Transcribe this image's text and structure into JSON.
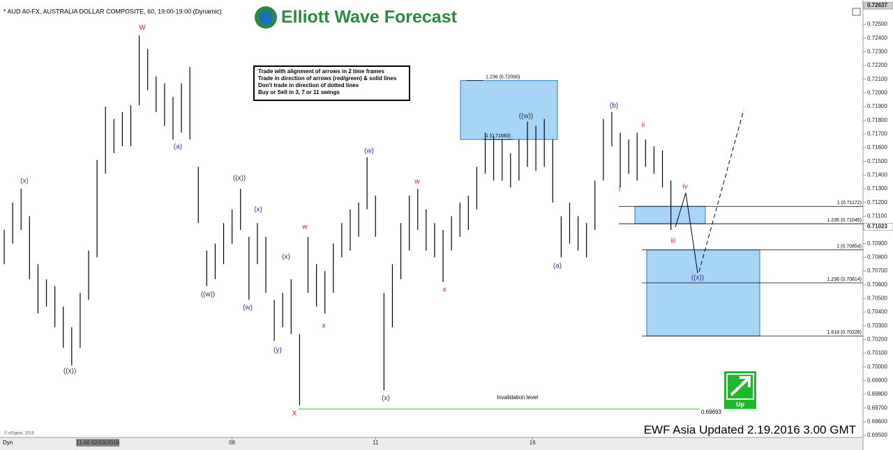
{
  "header": "* AUD A0-FX, AUSTRALIA DOLLAR COMPOSITE, 60, 19:00-19:00 (Dynamic)",
  "logo": "Elliott Wave Forecast",
  "rules": [
    "Trade with alignment of arrows in 2 time frames",
    "Trade in direction of arrows (red/green) & solid lines",
    "Don't trade in direction of dotted lines",
    "Buy or Sell in 3, 7 or 11 swings"
  ],
  "footer": "EWF Asia Updated 2.19.2016 3.00 GMT",
  "copyright": "© eSignal, 2016",
  "corner": "Dyn",
  "signal": "Up",
  "chart_data": {
    "type": "hilo",
    "color": "#000000",
    "high": [
      0.71,
      0.712,
      0.713,
      0.711,
      0.7075,
      0.7064,
      0.7059,
      0.7044,
      0.7029,
      0.7054,
      0.7085,
      0.7151,
      0.719,
      0.7181,
      0.7186,
      0.7191,
      0.7242,
      0.7232,
      0.7212,
      0.7207,
      0.7197,
      0.7207,
      0.7219,
      0.7146,
      0.7085,
      0.709,
      0.7105,
      0.7115,
      0.713,
      0.7095,
      0.7105,
      0.7095,
      0.7049,
      0.7054,
      0.7064,
      0.7024,
      0.7095,
      0.7075,
      0.707,
      0.709,
      0.7105,
      0.7115,
      0.712,
      0.7153,
      0.7125,
      0.7054,
      0.7075,
      0.7105,
      0.7125,
      0.713,
      0.7115,
      0.7105,
      0.71,
      0.711,
      0.712,
      0.7125,
      0.7146,
      0.7171,
      0.7168,
      0.7166,
      0.7156,
      0.7166,
      0.7179,
      0.7176,
      0.7181,
      0.7166,
      0.711,
      0.712,
      0.711,
      0.7105,
      0.7136,
      0.7181,
      0.7186,
      0.7171,
      0.7166,
      0.7171,
      0.7166,
      0.7161,
      0.7158,
      0.7136
    ],
    "low": [
      0.7075,
      0.709,
      0.71,
      0.7064,
      0.7039,
      0.7044,
      0.7029,
      0.7014,
      0.7001,
      0.7014,
      0.7049,
      0.708,
      0.7141,
      0.7156,
      0.7161,
      0.7161,
      0.7191,
      0.7202,
      0.7186,
      0.7176,
      0.7166,
      0.7171,
      0.7166,
      0.7105,
      0.7059,
      0.7064,
      0.7075,
      0.709,
      0.71,
      0.7049,
      0.7075,
      0.7054,
      0.7019,
      0.7029,
      0.7024,
      0.6972,
      0.7054,
      0.7044,
      0.7039,
      0.7054,
      0.708,
      0.7085,
      0.7095,
      0.7115,
      0.7095,
      0.6983,
      0.7029,
      0.7064,
      0.7085,
      0.71,
      0.7085,
      0.708,
      0.7062,
      0.7085,
      0.7095,
      0.71,
      0.7115,
      0.7141,
      0.7136,
      0.7136,
      0.7131,
      0.7136,
      0.7146,
      0.7143,
      0.7146,
      0.712,
      0.708,
      0.709,
      0.7085,
      0.708,
      0.71,
      0.7136,
      0.7161,
      0.7131,
      0.7141,
      0.7136,
      0.7146,
      0.7141,
      0.7131,
      0.71
    ],
    "xlim": [
      -0.5,
      101.6
    ],
    "ylim": [
      0.69475,
      0.72678
    ],
    "xticks": [
      {
        "value": 27,
        "label": "08"
      },
      {
        "value": 44,
        "label": "11"
      },
      {
        "value": 62.6,
        "label": "16"
      }
    ],
    "crosshair": {
      "value": 11,
      "label": "11:00 02/03/2016"
    },
    "yticks": [
      {
        "value": 0.725,
        "label": "0.72500"
      },
      {
        "value": 0.724,
        "label": "0.72400"
      },
      {
        "value": 0.723,
        "label": "0.72300"
      },
      {
        "value": 0.722,
        "label": "0.72200"
      },
      {
        "value": 0.721,
        "label": "0.72100"
      },
      {
        "value": 0.72,
        "label": "0.72000"
      },
      {
        "value": 0.719,
        "label": "0.71900"
      },
      {
        "value": 0.718,
        "label": "0.71800"
      },
      {
        "value": 0.717,
        "label": "0.71700"
      },
      {
        "value": 0.716,
        "label": "0.71600"
      },
      {
        "value": 0.715,
        "label": "0.71500"
      },
      {
        "value": 0.714,
        "label": "0.71400"
      },
      {
        "value": 0.713,
        "label": "0.71300"
      },
      {
        "value": 0.712,
        "label": "0.71200"
      },
      {
        "value": 0.711,
        "label": "0.71100"
      },
      {
        "value": 0.709,
        "label": "0.70900"
      },
      {
        "value": 0.708,
        "label": "0.70800"
      },
      {
        "value": 0.707,
        "label": "0.70700"
      },
      {
        "value": 0.706,
        "label": "0.70600"
      },
      {
        "value": 0.705,
        "label": "0.70500"
      },
      {
        "value": 0.704,
        "label": "0.70400"
      },
      {
        "value": 0.703,
        "label": "0.70300"
      },
      {
        "value": 0.702,
        "label": "0.70200"
      },
      {
        "value": 0.701,
        "label": "0.70100"
      },
      {
        "value": 0.7,
        "label": "0.70000"
      },
      {
        "value": 0.699,
        "label": "0.69900"
      },
      {
        "value": 0.698,
        "label": "0.69800"
      },
      {
        "value": 0.697,
        "label": "0.69700"
      },
      {
        "value": 0.696,
        "label": "0.69600"
      },
      {
        "value": 0.695,
        "label": "0.69500"
      }
    ],
    "price_tags": [
      {
        "value": 0.72637,
        "label": "0.72637"
      },
      {
        "value": 0.71023,
        "label": "0.71023"
      }
    ],
    "fib_levels": [
      {
        "value": 0.7209,
        "label": "1.236 (0.72090)"
      },
      {
        "value": 0.7166,
        "label": "1 (0.71660)"
      },
      {
        "value": 0.71172,
        "label": "1 (0.71172)"
      },
      {
        "value": 0.71045,
        "label": "1.236 (0.71045)"
      },
      {
        "value": 0.70854,
        "label": "1 (0.70854)"
      },
      {
        "value": 0.70614,
        "label": "1.236 (0.70614)"
      },
      {
        "value": 0.70226,
        "label": "1.618 (0.70226)"
      }
    ],
    "invalidation": {
      "value": 0.69693,
      "label": "0.69693",
      "text": "Invalidation level"
    },
    "wave_labels": [
      {
        "text": "W",
        "color": "#d02020"
      },
      {
        "text": "(x)",
        "color": "#3030a0"
      },
      {
        "text": "((x))",
        "color": "#333333"
      },
      {
        "text": "(a)",
        "color": "#3030a0"
      },
      {
        "text": "((w))",
        "color": "#333333"
      },
      {
        "text": "((x))",
        "color": "#333333"
      },
      {
        "text": "(x)",
        "color": "#3030a0"
      },
      {
        "text": "(w)",
        "color": "#3030a0"
      },
      {
        "text": "(x)",
        "color": "#3030a0"
      },
      {
        "text": "(y)",
        "color": "#3030a0"
      },
      {
        "text": "X",
        "color": "#d02020"
      },
      {
        "text": "w",
        "color": "#d02020"
      },
      {
        "text": "x",
        "color": "#d02020"
      },
      {
        "text": "(w)",
        "color": "#3030a0"
      },
      {
        "text": "(x)",
        "color": "#3030a0"
      },
      {
        "text": "w",
        "color": "#d02020"
      },
      {
        "text": "x",
        "color": "#d02020"
      },
      {
        "text": "((w))",
        "color": "#333333"
      },
      {
        "text": "(a)",
        "color": "#3030a0"
      },
      {
        "text": "(b)",
        "color": "#3030a0"
      },
      {
        "text": "i",
        "color": "#d02020"
      },
      {
        "text": "ii",
        "color": "#d02020"
      },
      {
        "text": "iii",
        "color": "#d02020"
      },
      {
        "text": "iv",
        "color": "#d02020"
      },
      {
        "text": "((x))",
        "color": "#3030a0"
      }
    ]
  }
}
